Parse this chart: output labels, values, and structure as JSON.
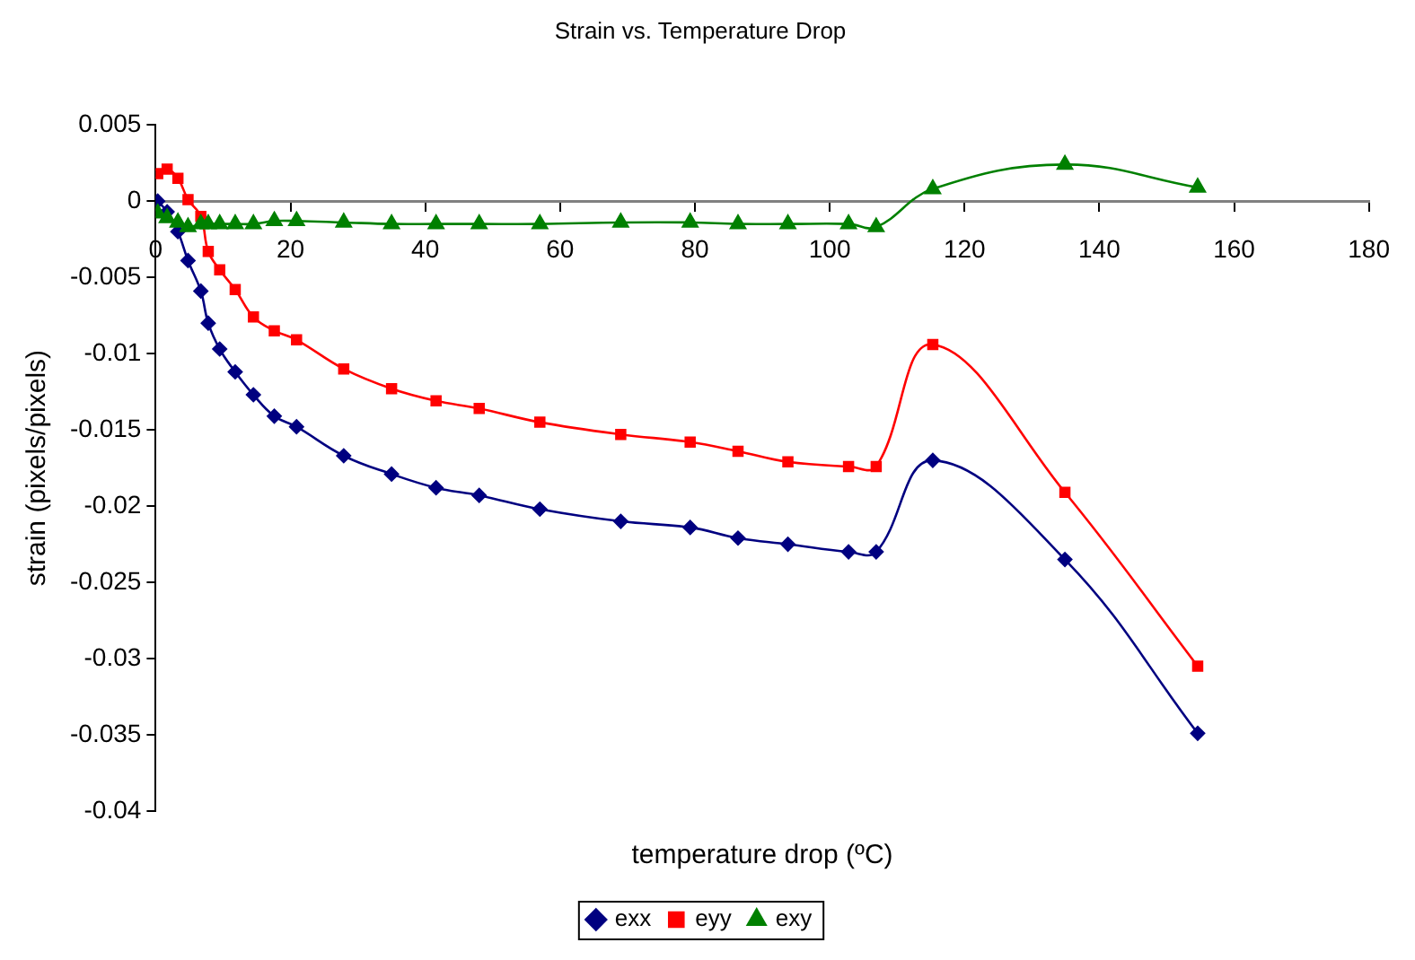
{
  "chart_data": {
    "type": "line",
    "title": "Strain vs. Temperature Drop",
    "xlabel": "temperature drop (ºC)",
    "ylabel": "strain (pixels/pixels)",
    "x": [
      0.3,
      1.7,
      3.3,
      4.8,
      6.7,
      7.8,
      9.5,
      11.8,
      14.5,
      17.6,
      20.9,
      27.9,
      35,
      41.6,
      48,
      57,
      69,
      79.3,
      86.4,
      93.8,
      102.8,
      106.9,
      115.3,
      134.9,
      154.6
    ],
    "series": [
      {
        "name": "exx",
        "color": "#000080",
        "marker": "diamond",
        "values": [
          0,
          -0.0007,
          -0.002,
          -0.0039,
          -0.0059,
          -0.008,
          -0.0097,
          -0.0112,
          -0.0127,
          -0.0141,
          -0.0148,
          -0.0167,
          -0.0179,
          -0.0188,
          -0.0193,
          -0.0202,
          -0.021,
          -0.0214,
          -0.0221,
          -0.0225,
          -0.023,
          -0.023,
          -0.017,
          -0.0235,
          -0.0349
        ]
      },
      {
        "name": "eyy",
        "color": "#ff0000",
        "marker": "square",
        "values": [
          0.0018,
          0.0021,
          0.0015,
          0.0001,
          -0.001,
          -0.0033,
          -0.0045,
          -0.0058,
          -0.0076,
          -0.0085,
          -0.0091,
          -0.011,
          -0.0123,
          -0.0131,
          -0.0136,
          -0.0145,
          -0.0153,
          -0.0158,
          -0.0164,
          -0.0171,
          -0.0174,
          -0.0174,
          -0.0094,
          -0.0191,
          -0.0305
        ]
      },
      {
        "name": "exy",
        "color": "#008000",
        "marker": "triangle",
        "values": [
          -0.0008,
          -0.0011,
          -0.0014,
          -0.0017,
          -0.0015,
          -0.0015,
          -0.0015,
          -0.0015,
          -0.0015,
          -0.0013,
          -0.0013,
          -0.0014,
          -0.0015,
          -0.0015,
          -0.0015,
          -0.0015,
          -0.0014,
          -0.0014,
          -0.0015,
          -0.0015,
          -0.0015,
          -0.0017,
          0.0008,
          0.0024,
          0.0009
        ]
      }
    ],
    "xlim": [
      0,
      180
    ],
    "xticks": [
      0,
      20,
      40,
      60,
      80,
      100,
      120,
      140,
      160,
      180
    ],
    "ylim": [
      -0.04,
      0.005
    ],
    "yticks": [
      -0.04,
      -0.035,
      -0.03,
      -0.025,
      -0.02,
      -0.015,
      -0.01,
      -0.005,
      0,
      0.005
    ],
    "grid": false,
    "legend": "bottom",
    "line_style": "solid"
  }
}
